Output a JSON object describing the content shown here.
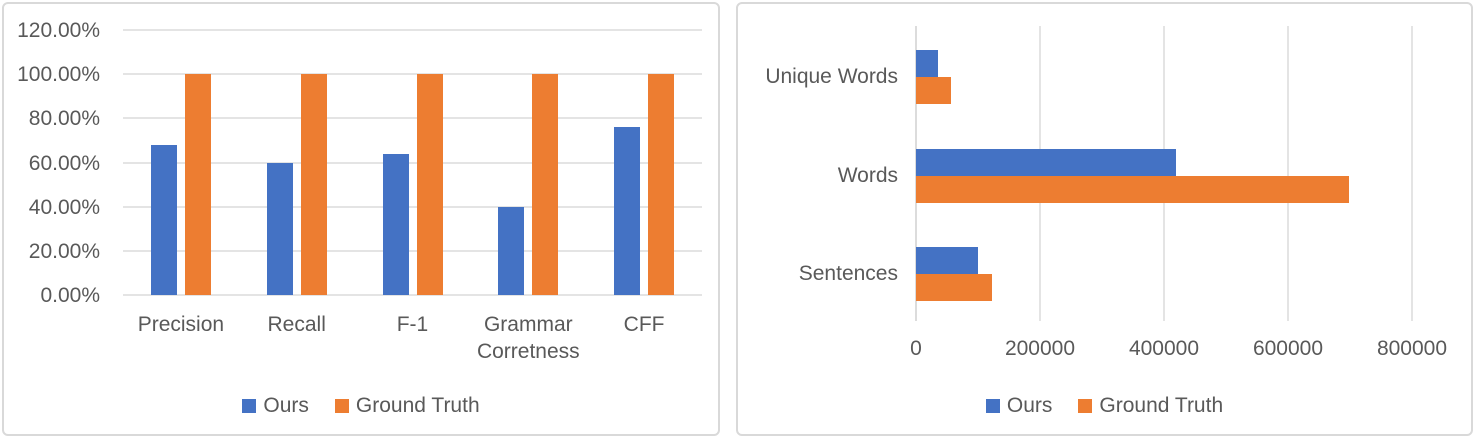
{
  "colors": {
    "series_ours": "#4472C4",
    "series_ground_truth": "#ED7D31",
    "text": "#595959",
    "gridline": "#E4E4E4",
    "axis_line": "#DCDCDC",
    "panel_border": "#D9D9D9",
    "background": "#FFFFFF"
  },
  "legend": {
    "items": [
      {
        "label": "Ours",
        "color": "#4472C4"
      },
      {
        "label": "Ground Truth",
        "color": "#ED7D31"
      }
    ]
  },
  "chart_data": [
    {
      "type": "bar",
      "orientation": "vertical",
      "title": "",
      "categories": [
        "Precision",
        "Recall",
        "F-1",
        "Grammar Corretness",
        "CFF"
      ],
      "series": [
        {
          "name": "Ours",
          "color": "#4472C4",
          "values": [
            68,
            60,
            64,
            40,
            76
          ]
        },
        {
          "name": "Ground Truth",
          "color": "#ED7D31",
          "values": [
            100,
            100,
            100,
            100,
            100
          ]
        }
      ],
      "unit": "percent",
      "y_axis": {
        "min": 0,
        "max": 120,
        "step": 20,
        "tick_labels": [
          "0.00%",
          "20.00%",
          "40.00%",
          "60.00%",
          "80.00%",
          "100.00%",
          "120.00%"
        ]
      },
      "grid": true,
      "legend_position": "bottom"
    },
    {
      "type": "bar",
      "orientation": "horizontal",
      "title": "",
      "categories": [
        "Unique Words",
        "Words",
        "Sentences"
      ],
      "series": [
        {
          "name": "Ours",
          "color": "#4472C4",
          "values": [
            35000,
            420000,
            100000
          ]
        },
        {
          "name": "Ground Truth",
          "color": "#ED7D31",
          "values": [
            57000,
            698000,
            122000
          ]
        }
      ],
      "x_axis": {
        "min": 0,
        "max": 800000,
        "step": 200000,
        "tick_labels": [
          "0",
          "200000",
          "400000",
          "600000",
          "800000"
        ]
      },
      "grid": true,
      "legend_position": "bottom"
    }
  ]
}
